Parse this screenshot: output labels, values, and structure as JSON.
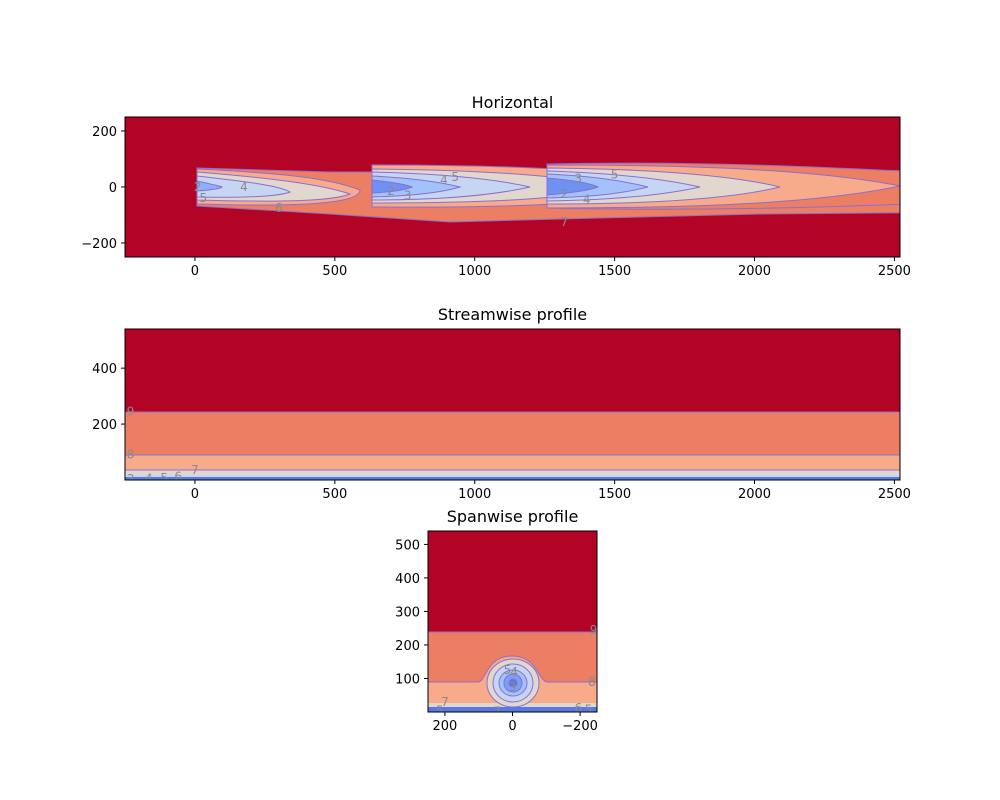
{
  "chart_data": [
    {
      "type": "contour",
      "title": "Horizontal",
      "xlim": [
        -250,
        2520
      ],
      "ylim": [
        -250,
        250
      ],
      "xticks": [
        0,
        500,
        1000,
        1500,
        2000,
        2500
      ],
      "yticks": [
        -200,
        0,
        200
      ],
      "xtick_labels": [
        "0",
        "500",
        "1000",
        "1500",
        "2000",
        "2500"
      ],
      "ytick_labels": [
        "−200",
        "0",
        "200"
      ],
      "colormap": "coolwarm",
      "background_level": 9,
      "turbine_x": [
        0,
        630,
        1260
      ],
      "contour_labels": [
        {
          "text": "2",
          "x": 10,
          "y": 0
        },
        {
          "text": "4",
          "x": 175,
          "y": 0
        },
        {
          "text": "5",
          "x": 30,
          "y": -40
        },
        {
          "text": "6",
          "x": 300,
          "y": -75
        },
        {
          "text": "2",
          "x": 700,
          "y": -15
        },
        {
          "text": "3",
          "x": 760,
          "y": -30
        },
        {
          "text": "4",
          "x": 890,
          "y": 25
        },
        {
          "text": "5",
          "x": 930,
          "y": 35
        },
        {
          "text": "3",
          "x": 1370,
          "y": 30
        },
        {
          "text": "2",
          "x": 1320,
          "y": -25
        },
        {
          "text": "4",
          "x": 1400,
          "y": -45
        },
        {
          "text": "5",
          "x": 1500,
          "y": 45
        },
        {
          "text": "7",
          "x": 1320,
          "y": -125
        }
      ]
    },
    {
      "type": "contour",
      "title": "Streamwise profile",
      "xlim": [
        -250,
        2520
      ],
      "ylim": [
        0,
        540
      ],
      "xticks": [
        0,
        500,
        1000,
        1500,
        2000,
        2500
      ],
      "yticks": [
        200,
        400
      ],
      "xtick_labels": [
        "0",
        "500",
        "1000",
        "1500",
        "2000",
        "2500"
      ],
      "ytick_labels": [
        "200",
        "400"
      ],
      "colormap": "coolwarm",
      "contour_labels": [
        {
          "text": "9",
          "x": -230,
          "y": 245
        },
        {
          "text": "8",
          "x": -230,
          "y": 92
        },
        {
          "text": "7",
          "x": 0,
          "y": 35
        },
        {
          "text": "6",
          "x": -60,
          "y": 12
        },
        {
          "text": "5",
          "x": -110,
          "y": 8
        },
        {
          "text": "4",
          "x": -165,
          "y": 5
        },
        {
          "text": "3",
          "x": -230,
          "y": 3
        }
      ]
    },
    {
      "type": "contour",
      "title": "Spanwise profile",
      "xlim": [
        250,
        -250
      ],
      "ylim": [
        0,
        540
      ],
      "xticks": [
        200,
        0,
        -200
      ],
      "yticks": [
        100,
        200,
        300,
        400,
        500
      ],
      "xtick_labels": [
        "200",
        "0",
        "−200"
      ],
      "ytick_labels": [
        "100",
        "200",
        "300",
        "400",
        "500"
      ],
      "colormap": "coolwarm",
      "contour_labels": [
        {
          "text": "9",
          "x": -240,
          "y": 245
        },
        {
          "text": "8",
          "x": -235,
          "y": 90
        },
        {
          "text": "7",
          "x": 200,
          "y": 30
        },
        {
          "text": "5",
          "x": 215,
          "y": 5
        },
        {
          "text": "5",
          "x": 15,
          "y": 125
        },
        {
          "text": "4",
          "x": -5,
          "y": 120
        },
        {
          "text": "3",
          "x": 0,
          "y": 75
        },
        {
          "text": "7",
          "x": 45,
          "y": 2
        },
        {
          "text": "6",
          "x": -195,
          "y": 12
        },
        {
          "text": "5",
          "x": -225,
          "y": 8
        }
      ]
    }
  ]
}
